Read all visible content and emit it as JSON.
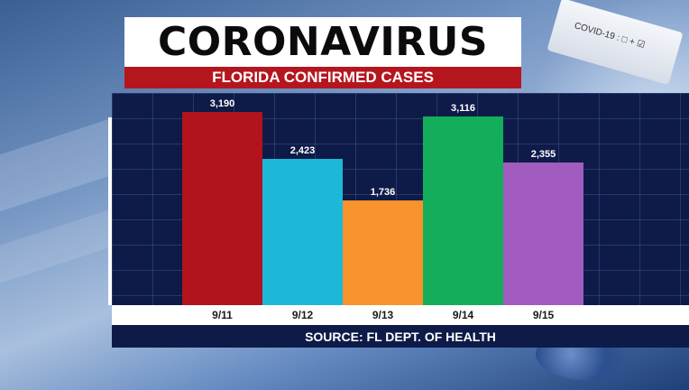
{
  "header": {
    "title": "CORONAVIRUS",
    "subtitle": "FLORIDA CONFIRMED CASES"
  },
  "decor": {
    "card_label": "COVID-19 : □ + ☑"
  },
  "chart_data": {
    "type": "bar",
    "categories": [
      "9/11",
      "9/12",
      "9/13",
      "9/14",
      "9/15"
    ],
    "values": [
      3190,
      2423,
      1736,
      3116,
      2355
    ],
    "value_labels": [
      "3,190",
      "2,423",
      "1,736",
      "3,116",
      "2,355"
    ],
    "colors": [
      "#b3131d",
      "#1db8d8",
      "#f8922c",
      "#14ad5b",
      "#a25bbf"
    ],
    "ylim": [
      0,
      3400
    ],
    "grid": true,
    "title": "FLORIDA CONFIRMED CASES",
    "xlabel": "",
    "ylabel": ""
  },
  "footer": {
    "source": "SOURCE: FL DEPT. OF HEALTH"
  }
}
